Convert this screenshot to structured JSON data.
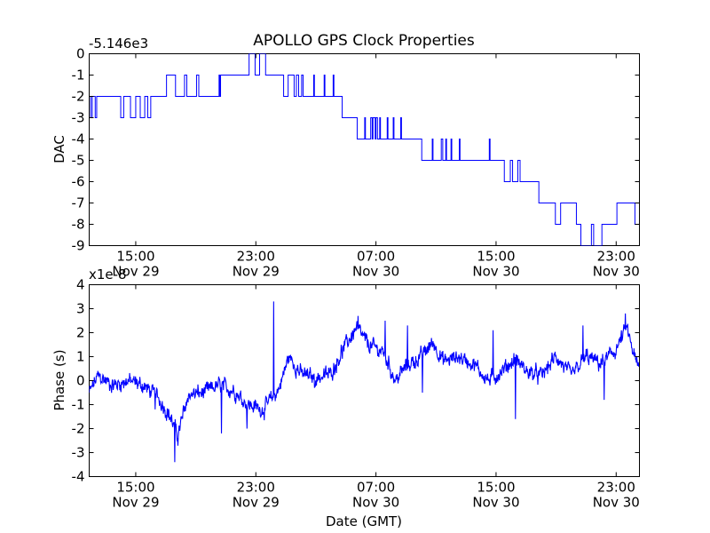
{
  "figure": {
    "title": "APOLLO GPS Clock Properties",
    "line_color": "#0000ff"
  },
  "chart_data": [
    {
      "type": "line",
      "title": "APOLLO GPS Clock Properties",
      "ylabel": "DAC",
      "xlabel": "",
      "offset_label": "-5.146e3",
      "ylim": [
        -9,
        0
      ],
      "y_ticks": [
        0,
        -1,
        -2,
        -3,
        -4,
        -5,
        -6,
        -7,
        -8,
        -9
      ],
      "y_tick_labels": [
        "0",
        "-1",
        "-2",
        "-3",
        "-4",
        "-5",
        "-6",
        "-7",
        "-8",
        "-9"
      ],
      "x_unit": "hours since Nov 29 00:00 GMT",
      "xlim": [
        11.9,
        48.55
      ],
      "x_ticks": [
        15,
        23,
        31,
        39,
        47
      ],
      "x_tick_labels": [
        {
          "time": "15:00",
          "date": "Nov 29"
        },
        {
          "time": "23:00",
          "date": "Nov 29"
        },
        {
          "time": "07:00",
          "date": "Nov 30"
        },
        {
          "time": "15:00",
          "date": "Nov 30"
        },
        {
          "time": "23:00",
          "date": "Nov 30"
        }
      ],
      "series": [
        {
          "name": "DAC",
          "points": [
            [
              11.9,
              -2
            ],
            [
              12.0,
              -3
            ],
            [
              12.1,
              -2
            ],
            [
              12.25,
              -2
            ],
            [
              12.3,
              -3
            ],
            [
              12.4,
              -2
            ],
            [
              13.9,
              -2
            ],
            [
              14.0,
              -3
            ],
            [
              14.2,
              -2
            ],
            [
              14.6,
              -2
            ],
            [
              14.65,
              -3
            ],
            [
              14.9,
              -3
            ],
            [
              15.0,
              -2
            ],
            [
              15.2,
              -2
            ],
            [
              15.3,
              -3
            ],
            [
              15.6,
              -2
            ],
            [
              15.7,
              -2
            ],
            [
              15.8,
              -3
            ],
            [
              16.0,
              -2
            ],
            [
              17.0,
              -2
            ],
            [
              17.05,
              -1
            ],
            [
              17.6,
              -1
            ],
            [
              17.65,
              -2
            ],
            [
              18.2,
              -2
            ],
            [
              18.25,
              -1
            ],
            [
              18.35,
              -1
            ],
            [
              18.4,
              -2
            ],
            [
              19.0,
              -2
            ],
            [
              19.05,
              -1
            ],
            [
              19.15,
              -1
            ],
            [
              19.2,
              -2
            ],
            [
              20.5,
              -2
            ],
            [
              20.55,
              -1
            ],
            [
              20.6,
              -2
            ],
            [
              20.65,
              -1
            ],
            [
              22.5,
              -1
            ],
            [
              22.55,
              0
            ],
            [
              22.9,
              0
            ],
            [
              22.95,
              -1
            ],
            [
              23.2,
              -1
            ],
            [
              23.25,
              0
            ],
            [
              23.6,
              0
            ],
            [
              23.65,
              -1
            ],
            [
              24.8,
              -1
            ],
            [
              24.85,
              -2
            ],
            [
              25.1,
              -2
            ],
            [
              25.15,
              -1
            ],
            [
              25.5,
              -1
            ],
            [
              25.55,
              -2
            ],
            [
              25.65,
              -2
            ],
            [
              25.7,
              -1
            ],
            [
              25.8,
              -1
            ],
            [
              25.85,
              -2
            ],
            [
              26.0,
              -2
            ],
            [
              26.05,
              -1
            ],
            [
              26.1,
              -1
            ],
            [
              26.15,
              -2
            ],
            [
              26.8,
              -2
            ],
            [
              26.85,
              -1
            ],
            [
              26.9,
              -2
            ],
            [
              27.5,
              -2
            ],
            [
              27.55,
              -1
            ],
            [
              27.6,
              -2
            ],
            [
              28.1,
              -2
            ],
            [
              28.15,
              -1
            ],
            [
              28.2,
              -2
            ],
            [
              28.7,
              -2
            ],
            [
              28.75,
              -3
            ],
            [
              29.7,
              -3
            ],
            [
              29.75,
              -4
            ],
            [
              30.2,
              -4
            ],
            [
              30.25,
              -3
            ],
            [
              30.3,
              -4
            ],
            [
              30.6,
              -4
            ],
            [
              30.65,
              -3
            ],
            [
              30.75,
              -4
            ],
            [
              30.8,
              -3
            ],
            [
              30.9,
              -3
            ],
            [
              30.95,
              -4
            ],
            [
              31.0,
              -3
            ],
            [
              31.1,
              -4
            ],
            [
              31.2,
              -4
            ],
            [
              31.25,
              -3
            ],
            [
              31.3,
              -4
            ],
            [
              31.7,
              -4
            ],
            [
              31.75,
              -3
            ],
            [
              31.8,
              -4
            ],
            [
              32.1,
              -4
            ],
            [
              32.15,
              -3
            ],
            [
              32.2,
              -4
            ],
            [
              32.6,
              -4
            ],
            [
              32.65,
              -3
            ],
            [
              32.7,
              -4
            ],
            [
              34.0,
              -4
            ],
            [
              34.05,
              -5
            ],
            [
              34.7,
              -5
            ],
            [
              34.75,
              -4
            ],
            [
              34.8,
              -5
            ],
            [
              35.3,
              -5
            ],
            [
              35.35,
              -4
            ],
            [
              35.45,
              -5
            ],
            [
              35.6,
              -5
            ],
            [
              35.65,
              -4
            ],
            [
              35.7,
              -5
            ],
            [
              35.95,
              -5
            ],
            [
              36.0,
              -4
            ],
            [
              36.05,
              -5
            ],
            [
              36.5,
              -5
            ],
            [
              36.55,
              -4
            ],
            [
              36.6,
              -5
            ],
            [
              38.5,
              -5
            ],
            [
              38.55,
              -4
            ],
            [
              38.6,
              -5
            ],
            [
              39.5,
              -5
            ],
            [
              39.55,
              -6
            ],
            [
              39.9,
              -6
            ],
            [
              39.95,
              -5
            ],
            [
              40.05,
              -5
            ],
            [
              40.1,
              -6
            ],
            [
              40.4,
              -6
            ],
            [
              40.45,
              -5
            ],
            [
              40.55,
              -5
            ],
            [
              40.6,
              -6
            ],
            [
              41.8,
              -6
            ],
            [
              41.85,
              -7
            ],
            [
              42.9,
              -7
            ],
            [
              42.95,
              -8
            ],
            [
              43.2,
              -8
            ],
            [
              43.3,
              -7
            ],
            [
              44.3,
              -7
            ],
            [
              44.35,
              -8
            ],
            [
              44.6,
              -8
            ],
            [
              44.65,
              -9
            ],
            [
              45.3,
              -9
            ],
            [
              45.35,
              -8
            ],
            [
              45.45,
              -8
            ],
            [
              45.5,
              -9
            ],
            [
              46.0,
              -9
            ],
            [
              46.05,
              -8
            ],
            [
              47.0,
              -8
            ],
            [
              47.05,
              -7
            ],
            [
              48.2,
              -7
            ],
            [
              48.25,
              -8
            ],
            [
              48.3,
              -8
            ]
          ]
        }
      ]
    },
    {
      "type": "line",
      "title": "",
      "ylabel": "Phase (s)",
      "xlabel": "Date (GMT)",
      "offset_label": "x1e-8",
      "ylim": [
        -4,
        4
      ],
      "y_ticks": [
        4,
        3,
        2,
        1,
        0,
        -1,
        -2,
        -3,
        -4
      ],
      "y_tick_labels": [
        "4",
        "3",
        "2",
        "1",
        "0",
        "-1",
        "-2",
        "-3",
        "-4"
      ],
      "x_unit": "hours since Nov 29 00:00 GMT",
      "xlim": [
        11.9,
        48.55
      ],
      "x_ticks": [
        15,
        23,
        31,
        39,
        47
      ],
      "x_tick_labels": [
        {
          "time": "15:00",
          "date": "Nov 29"
        },
        {
          "time": "23:00",
          "date": "Nov 29"
        },
        {
          "time": "07:00",
          "date": "Nov 30"
        },
        {
          "time": "15:00",
          "date": "Nov 30"
        },
        {
          "time": "23:00",
          "date": "Nov 30"
        }
      ],
      "series": [
        {
          "name": "Phase",
          "noise_amplitude": 0.4,
          "trend": [
            [
              11.9,
              -0.5
            ],
            [
              12.5,
              0.2
            ],
            [
              13.5,
              -0.2
            ],
            [
              14.5,
              0.0
            ],
            [
              15.5,
              -0.2
            ],
            [
              16.5,
              -0.7
            ],
            [
              17.3,
              -1.5
            ],
            [
              17.8,
              -2.3
            ],
            [
              18.5,
              -0.6
            ],
            [
              19.5,
              -0.5
            ],
            [
              20.5,
              -0.2
            ],
            [
              21.5,
              -0.4
            ],
            [
              22.5,
              -1.0
            ],
            [
              23.5,
              -1.2
            ],
            [
              24.5,
              -0.4
            ],
            [
              25.2,
              1.0
            ],
            [
              26.0,
              0.3
            ],
            [
              27.0,
              0.1
            ],
            [
              28.0,
              0.3
            ],
            [
              28.8,
              1.3
            ],
            [
              29.7,
              2.2
            ],
            [
              30.5,
              1.5
            ],
            [
              31.5,
              1.2
            ],
            [
              32.3,
              0.0
            ],
            [
              33.0,
              0.6
            ],
            [
              34.0,
              1.0
            ],
            [
              34.8,
              1.6
            ],
            [
              35.5,
              0.8
            ],
            [
              36.5,
              1.0
            ],
            [
              37.5,
              0.7
            ],
            [
              38.5,
              0.0
            ],
            [
              39.2,
              0.3
            ],
            [
              40.3,
              0.9
            ],
            [
              41.0,
              0.4
            ],
            [
              42.0,
              0.2
            ],
            [
              43.0,
              1.0
            ],
            [
              44.0,
              0.2
            ],
            [
              45.0,
              1.0
            ],
            [
              46.0,
              0.7
            ],
            [
              47.0,
              1.3
            ],
            [
              47.7,
              2.2
            ],
            [
              48.2,
              1.0
            ],
            [
              48.5,
              0.5
            ]
          ],
          "spikes": [
            [
              16.3,
              -1.2
            ],
            [
              17.6,
              -3.4
            ],
            [
              20.7,
              -2.2
            ],
            [
              22.4,
              -2.0
            ],
            [
              24.2,
              3.3
            ],
            [
              26.9,
              -0.3
            ],
            [
              29.8,
              2.7
            ],
            [
              31.6,
              2.5
            ],
            [
              33.1,
              2.3
            ],
            [
              34.1,
              -0.5
            ],
            [
              38.8,
              2.1
            ],
            [
              40.3,
              -1.6
            ],
            [
              42.2,
              0.4
            ],
            [
              44.8,
              2.3
            ],
            [
              46.2,
              -0.8
            ],
            [
              47.6,
              2.8
            ]
          ]
        }
      ]
    }
  ]
}
